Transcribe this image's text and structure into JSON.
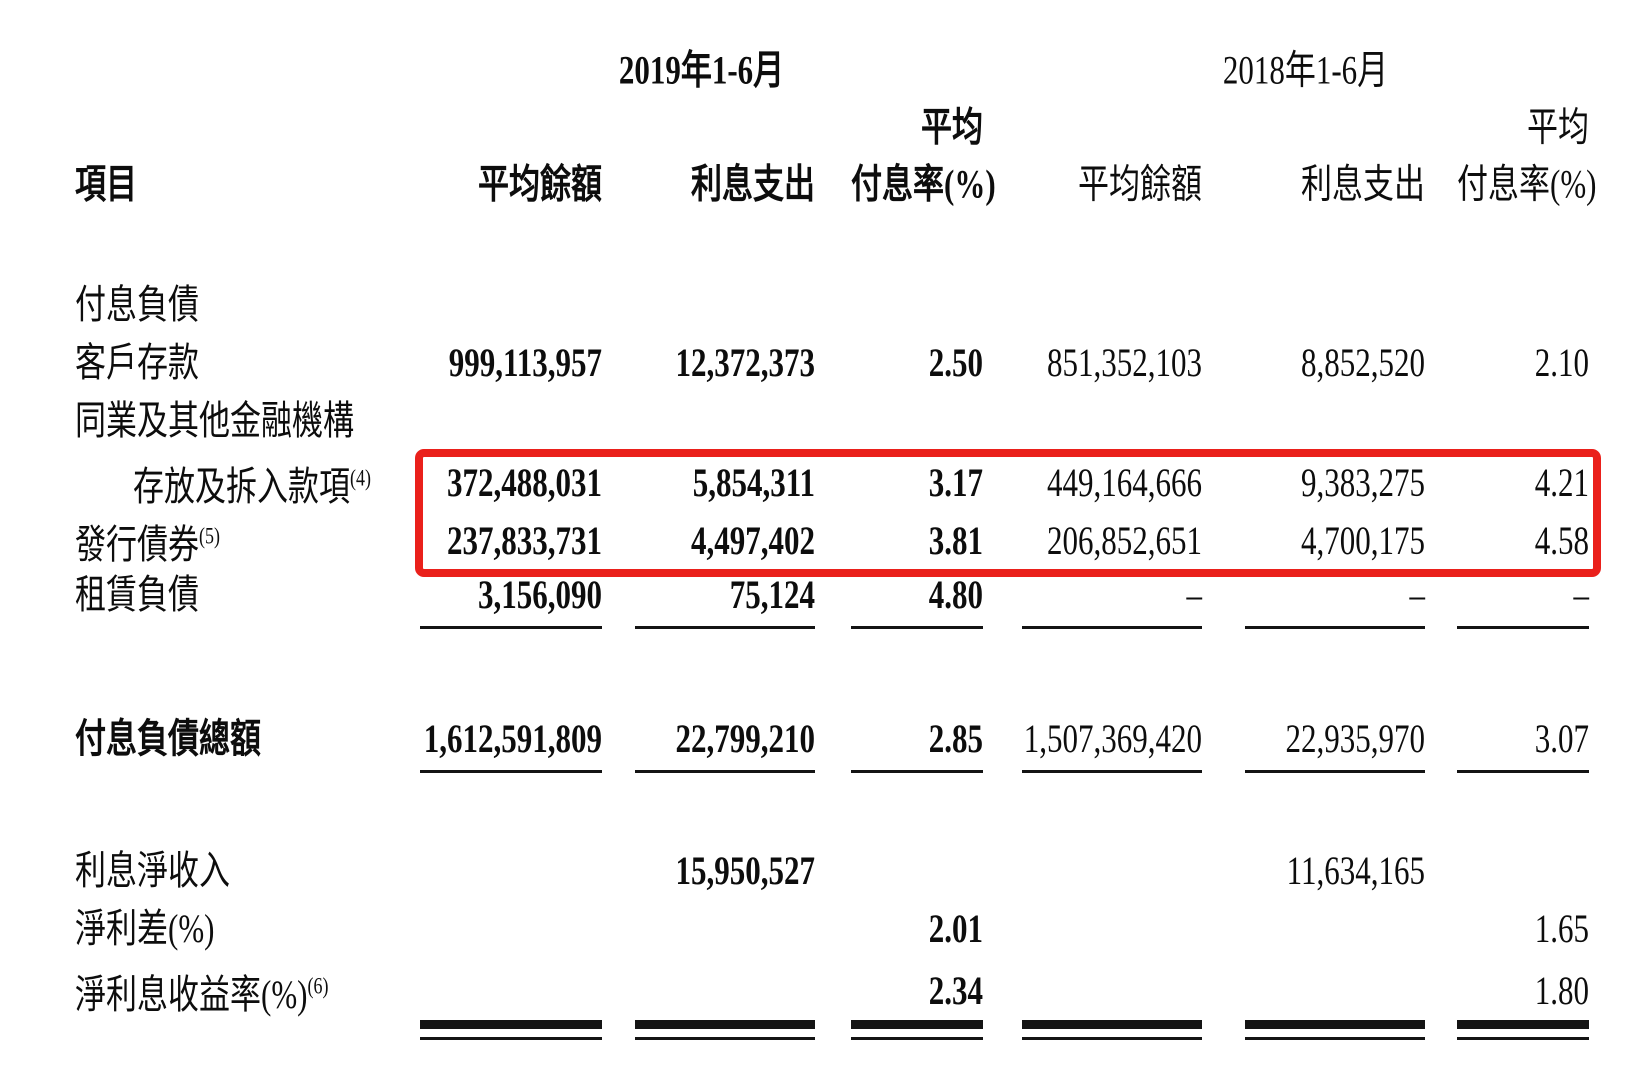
{
  "document": {
    "periods": {
      "p2019": "2019年1-6月",
      "p2018": "2018年1-6月"
    },
    "header": {
      "item": "項目",
      "avg_2019": "平均",
      "avg_2018": "平均",
      "cols": [
        "平均餘額",
        "利息支出",
        "付息率(%)",
        "平均餘額",
        "利息支出",
        "付息率(%)"
      ]
    },
    "rows": [
      {
        "label": "付息負債"
      },
      {
        "label": "客戶存款",
        "values": [
          "999,113,957",
          "12,372,373",
          "2.50",
          "851,352,103",
          "8,852,520",
          "2.10"
        ]
      },
      {
        "label": "同業及其他金融機構"
      },
      {
        "label": "存放及拆入款項",
        "sup": "(4)",
        "values": [
          "372,488,031",
          "5,854,311",
          "3.17",
          "449,164,666",
          "9,383,275",
          "4.21"
        ]
      },
      {
        "label": "發行債券",
        "sup": "(5)",
        "values": [
          "237,833,731",
          "4,497,402",
          "3.81",
          "206,852,651",
          "4,700,175",
          "4.58"
        ]
      },
      {
        "label": "租賃負債",
        "values": [
          "3,156,090",
          "75,124",
          "4.80",
          "–",
          "–",
          "–"
        ]
      },
      {
        "label": "付息負債總額",
        "values": [
          "1,612,591,809",
          "22,799,210",
          "2.85",
          "1,507,369,420",
          "22,935,970",
          "3.07"
        ]
      },
      {
        "label": "利息淨收入",
        "values": [
          "",
          "15,950,527",
          "",
          "",
          "11,634,165",
          ""
        ]
      },
      {
        "label": "淨利差(%)",
        "values": [
          "",
          "",
          "2.01",
          "",
          "",
          "1.65"
        ]
      },
      {
        "label": "淨利息收益率(%)",
        "sup": "(6)",
        "values": [
          "",
          "",
          "2.34",
          "",
          "",
          "1.80"
        ]
      }
    ],
    "highlight": {
      "color": "#ea201b"
    },
    "colors": {
      "text": "#0d0d0d",
      "rule": "#141414",
      "background": "#ffffff"
    }
  }
}
